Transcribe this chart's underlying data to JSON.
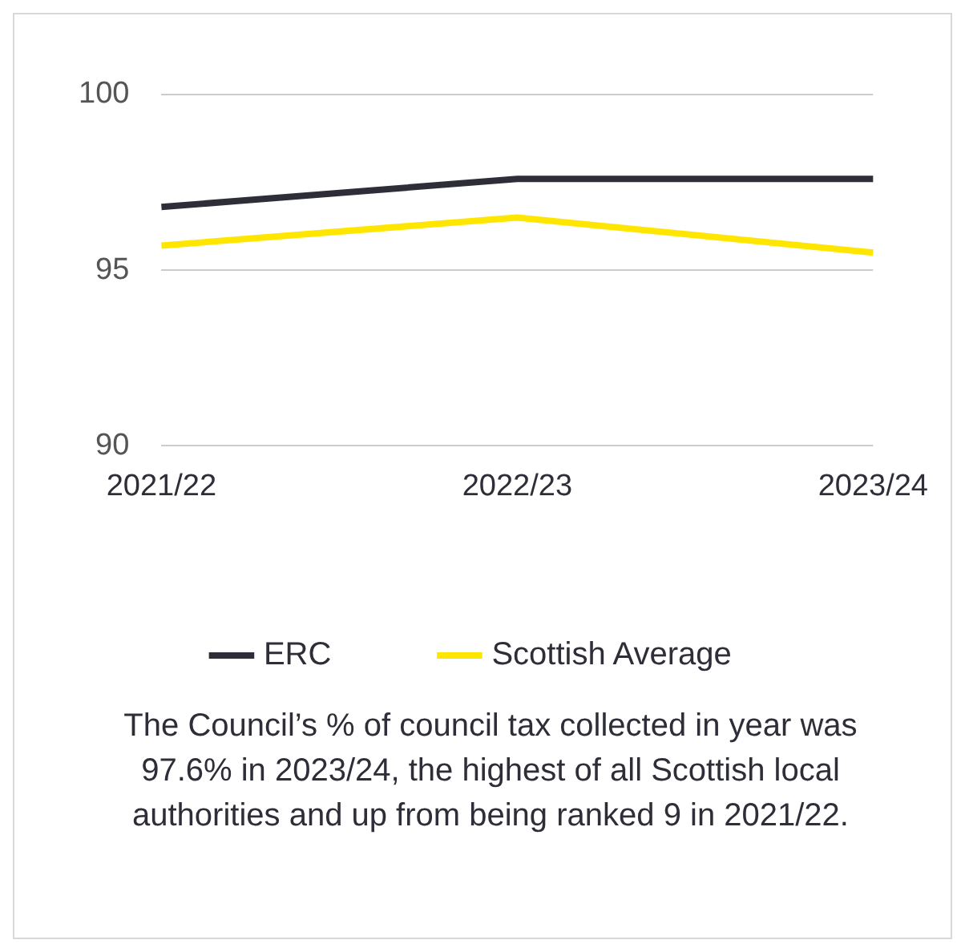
{
  "chart_data": {
    "type": "line",
    "categories": [
      "2021/22",
      "2022/23",
      "2023/24"
    ],
    "series": [
      {
        "name": "ERC",
        "color": "#2e2e38",
        "values": [
          96.8,
          97.6,
          97.6
        ]
      },
      {
        "name": "Scottish Average",
        "color": "#ffe600",
        "values": [
          95.7,
          96.5,
          95.5
        ]
      }
    ],
    "ylim": [
      90,
      100
    ],
    "yticks": [
      90,
      95,
      100
    ],
    "grid": "y",
    "legend": "bottom",
    "marker": "none",
    "line_style": "solid",
    "annotations": [
      "The Council’s % of council tax collected in year was 97.6% in 2023/24, the highest of all Scottish local authorities and up from being ranked 9 in 2021/22."
    ]
  }
}
